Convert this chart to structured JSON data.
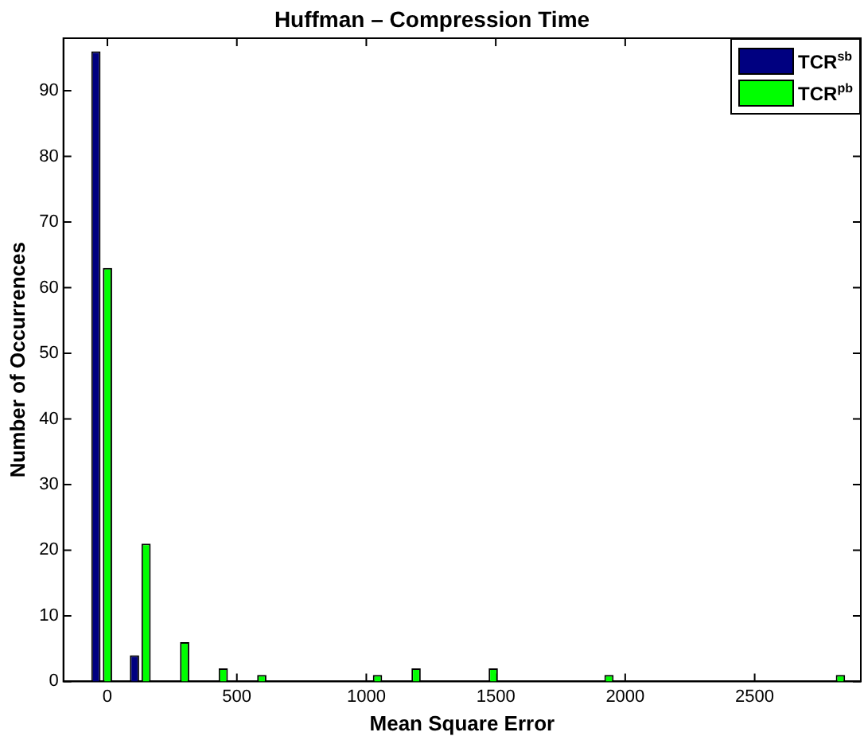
{
  "chart_data": {
    "type": "bar",
    "title": "Huffman – Compression Time",
    "xlabel": "Mean Square Error",
    "ylabel": "Number of Occurrences",
    "x": [
      -22,
      127,
      276,
      425,
      574,
      723,
      872,
      1021,
      1170,
      1319,
      1468,
      1617,
      1766,
      1915,
      2064,
      2213,
      2362,
      2511,
      2660,
      2809
    ],
    "series": [
      {
        "name": "TCR$^{sb}$",
        "color": "#000080",
        "values": [
          96,
          4,
          0,
          0,
          0,
          0,
          0,
          0,
          0,
          0,
          0,
          0,
          0,
          0,
          0,
          0,
          0,
          0,
          0,
          0
        ]
      },
      {
        "name": "TCR$^{pb}$",
        "color": "#00ff00",
        "values": [
          63,
          21,
          6,
          2,
          1,
          0,
          0,
          1,
          2,
          0,
          2,
          0,
          0,
          1,
          0,
          0,
          0,
          0,
          0,
          1
        ]
      }
    ],
    "xlim": [
      -170,
      2910
    ],
    "xticks": [
      0,
      500,
      1000,
      1500,
      2000,
      2500
    ],
    "ylim": [
      0,
      98
    ],
    "yticks": [
      0,
      10,
      20,
      30,
      40,
      50,
      60,
      70,
      80,
      90
    ],
    "grid": false,
    "legend": "top right"
  }
}
